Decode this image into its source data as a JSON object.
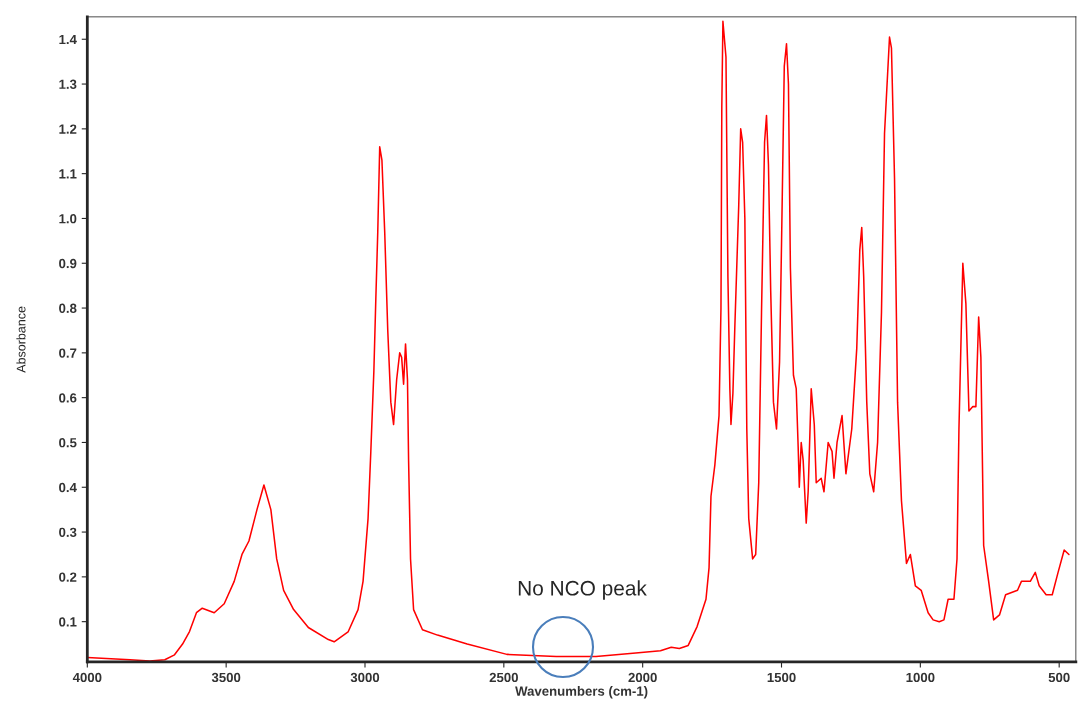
{
  "chart_data": {
    "type": "line",
    "xlabel": "Wavenumbers (cm-1)",
    "ylabel": "Absorbance",
    "xlim": [
      4000,
      440
    ],
    "ylim": [
      0.01,
      1.45
    ],
    "xticks": [
      4000,
      3500,
      3000,
      2500,
      2000,
      1500,
      1000,
      500
    ],
    "yticks": [
      0.1,
      0.2,
      0.3,
      0.4,
      0.5,
      0.6,
      0.7,
      0.8,
      0.9,
      {
        "value": 1.0,
        "label": "1.0"
      },
      1.1,
      1.2,
      1.3,
      1.4
    ],
    "grid": false,
    "legend": false,
    "marker": "none",
    "line_style": "solid",
    "annotations": [
      "No NCO peak"
    ],
    "series": [
      {
        "color": "#ff0000",
        "x": [
          4000,
          3846,
          3775,
          3721,
          3686,
          3657,
          3632,
          3607,
          3586,
          3543,
          3507,
          3471,
          3443,
          3418,
          3389,
          3364,
          3339,
          3318,
          3293,
          3257,
          3204,
          3132,
          3111,
          3061,
          3025,
          3007,
          2989,
          2979,
          2968,
          2961,
          2954,
          2947,
          2939,
          2929,
          2918,
          2907,
          2897,
          2886,
          2875,
          2868,
          2861,
          2854,
          2847,
          2843,
          2836,
          2825,
          2793,
          2739,
          2632,
          2489,
          2311,
          2168,
          2025,
          1936,
          1897,
          1868,
          1836,
          1804,
          1772,
          1761,
          1754,
          1740,
          1725,
          1718,
          1715,
          1711,
          1700,
          1693,
          1686,
          1682,
          1675,
          1668,
          1654,
          1647,
          1640,
          1632,
          1625,
          1618,
          1604,
          1593,
          1582,
          1572,
          1561,
          1554,
          1547,
          1539,
          1529,
          1518,
          1507,
          1500,
          1490,
          1482,
          1475,
          1468,
          1457,
          1447,
          1440,
          1436,
          1429,
          1422,
          1411,
          1404,
          1393,
          1382,
          1375,
          1357,
          1347,
          1332,
          1318,
          1311,
          1300,
          1282,
          1268,
          1247,
          1229,
          1218,
          1211,
          1204,
          1193,
          1182,
          1168,
          1154,
          1140,
          1129,
          1111,
          1104,
          1093,
          1082,
          1068,
          1050,
          1036,
          1018,
          997,
          972,
          954,
          932,
          915,
          900,
          879,
          868,
          861,
          847,
          836,
          825,
          811,
          800,
          790,
          782,
          772,
          754,
          736,
          715,
          693,
          650,
          636,
          604,
          586,
          572,
          547,
          525,
          504,
          482,
          465
        ],
        "values": [
          0.02,
          0.015,
          0.012,
          0.015,
          0.026,
          0.05,
          0.078,
          0.12,
          0.13,
          0.12,
          0.14,
          0.19,
          0.25,
          0.28,
          0.35,
          0.405,
          0.35,
          0.24,
          0.17,
          0.127,
          0.087,
          0.06,
          0.055,
          0.077,
          0.127,
          0.19,
          0.33,
          0.48,
          0.66,
          0.82,
          0.97,
          1.16,
          1.13,
          0.97,
          0.75,
          0.59,
          0.54,
          0.64,
          0.7,
          0.69,
          0.63,
          0.72,
          0.64,
          0.46,
          0.24,
          0.127,
          0.082,
          0.07,
          0.05,
          0.027,
          0.022,
          0.022,
          0.03,
          0.035,
          0.043,
          0.04,
          0.047,
          0.089,
          0.15,
          0.22,
          0.38,
          0.45,
          0.56,
          0.8,
          1.25,
          1.44,
          1.36,
          0.87,
          0.62,
          0.54,
          0.61,
          0.76,
          1.03,
          1.2,
          1.17,
          1.0,
          0.53,
          0.33,
          0.24,
          0.25,
          0.41,
          0.79,
          1.17,
          1.23,
          1.12,
          0.84,
          0.59,
          0.53,
          0.68,
          0.94,
          1.34,
          1.39,
          1.3,
          0.89,
          0.65,
          0.62,
          0.49,
          0.4,
          0.5,
          0.46,
          0.32,
          0.39,
          0.62,
          0.54,
          0.41,
          0.42,
          0.39,
          0.5,
          0.48,
          0.42,
          0.5,
          0.56,
          0.43,
          0.53,
          0.71,
          0.93,
          0.98,
          0.87,
          0.59,
          0.43,
          0.39,
          0.5,
          0.79,
          1.19,
          1.405,
          1.38,
          1.09,
          0.59,
          0.37,
          0.23,
          0.25,
          0.18,
          0.17,
          0.12,
          0.104,
          0.1,
          0.104,
          0.15,
          0.15,
          0.24,
          0.53,
          0.9,
          0.81,
          0.57,
          0.58,
          0.58,
          0.78,
          0.69,
          0.27,
          0.19,
          0.104,
          0.115,
          0.16,
          0.17,
          0.19,
          0.19,
          0.21,
          0.18,
          0.16,
          0.16,
          0.21,
          0.26,
          0.25
        ]
      }
    ]
  }
}
